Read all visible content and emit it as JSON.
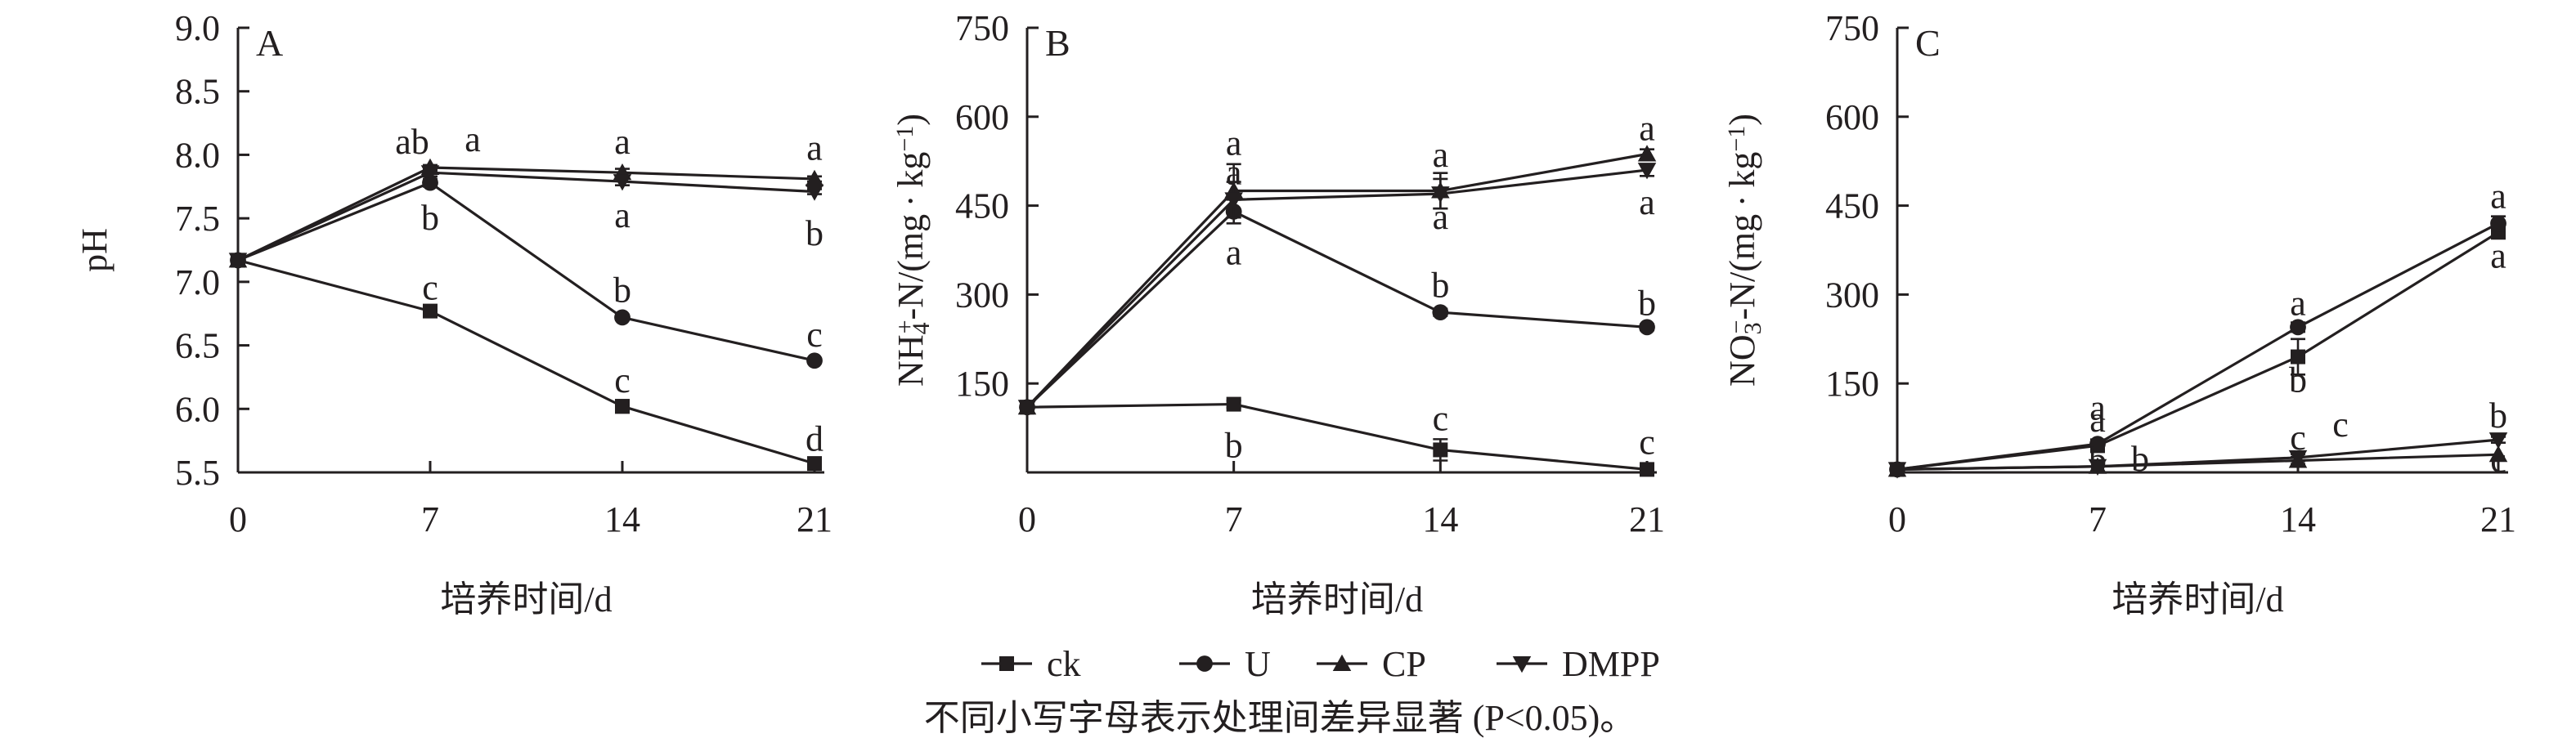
{
  "figure": {
    "xlabel": "培养时间/d",
    "note": "不同小写字母表示处理间差异显著 (P<0.05)。"
  },
  "legend": [
    "ck",
    "U",
    "CP",
    "DMPP"
  ],
  "chart_data": [
    {
      "type": "line",
      "panel_label": "A",
      "ylabel": "pH",
      "xlabel": "培养时间/d",
      "x": [
        0,
        7,
        14,
        21
      ],
      "x_tick_labels": [
        "0",
        "7",
        "14",
        "21"
      ],
      "ylim": [
        5.5,
        9.0
      ],
      "y_ticks": [
        5.5,
        6.0,
        6.5,
        7.0,
        7.5,
        8.0,
        8.5,
        9.0
      ],
      "y_tick_labels": [
        "5.5",
        "6.0",
        "6.5",
        "7.0",
        "7.5",
        "8.0",
        "8.5",
        "9.0"
      ],
      "series": [
        {
          "name": "ck",
          "marker": "square",
          "values": [
            7.17,
            6.77,
            6.02,
            5.57
          ],
          "errors": [
            0.04,
            0.03,
            0.05,
            0.03
          ]
        },
        {
          "name": "U",
          "marker": "circle",
          "values": [
            7.17,
            7.78,
            6.72,
            6.38
          ],
          "errors": [
            0.04,
            0.03,
            0.02,
            0.02
          ]
        },
        {
          "name": "CP",
          "marker": "triangle-up",
          "values": [
            7.17,
            7.9,
            7.86,
            7.81
          ],
          "errors": [
            0.04,
            0.02,
            0.03,
            0.02
          ]
        },
        {
          "name": "DMPP",
          "marker": "triangle-down",
          "values": [
            7.17,
            7.86,
            7.79,
            7.71
          ],
          "errors": [
            0.04,
            0.03,
            0.03,
            0.02
          ]
        }
      ],
      "annotations": [
        {
          "text": "ab",
          "x": 7,
          "y": 8.1
        },
        {
          "text": "a",
          "x": 7,
          "y": 8.12
        },
        {
          "text": "b",
          "x": 7,
          "y": 7.5
        },
        {
          "text": "c",
          "x": 7,
          "y": 6.95
        },
        {
          "text": "a",
          "x": 14,
          "y": 8.1
        },
        {
          "text": "a",
          "x": 14,
          "y": 7.52
        },
        {
          "text": "b",
          "x": 14,
          "y": 6.93
        },
        {
          "text": "c",
          "x": 14,
          "y": 6.22
        },
        {
          "text": "a",
          "x": 21,
          "y": 8.05
        },
        {
          "text": "b",
          "x": 21,
          "y": 7.38
        },
        {
          "text": "c",
          "x": 21,
          "y": 6.58
        },
        {
          "text": "d",
          "x": 21,
          "y": 5.76
        }
      ]
    },
    {
      "type": "line",
      "panel_label": "B",
      "ylabel": "NH4+-N/(mg·kg-1)",
      "xlabel": "培养时间/d",
      "x": [
        0,
        7,
        14,
        21
      ],
      "x_tick_labels": [
        "0",
        "7",
        "14",
        "21"
      ],
      "ylim": [
        0,
        750
      ],
      "y_ticks": [
        150,
        300,
        450,
        600,
        750
      ],
      "y_tick_labels": [
        "150",
        "300",
        "450",
        "600",
        "750"
      ],
      "series": [
        {
          "name": "ck",
          "marker": "square",
          "values": [
            110,
            115,
            38,
            5
          ],
          "errors": [
            5,
            6,
            18,
            4
          ]
        },
        {
          "name": "U",
          "marker": "circle",
          "values": [
            110,
            440,
            270,
            245
          ],
          "errors": [
            5,
            20,
            6,
            5
          ]
        },
        {
          "name": "CP",
          "marker": "triangle-up",
          "values": [
            110,
            475,
            475,
            537
          ],
          "errors": [
            5,
            45,
            30,
            8
          ]
        },
        {
          "name": "DMPP",
          "marker": "triangle-down",
          "values": [
            110,
            460,
            470,
            510
          ],
          "errors": [
            5,
            30,
            25,
            10
          ]
        }
      ],
      "annotations": [
        {
          "text": "a",
          "x": 7,
          "y": 505
        },
        {
          "text": "a",
          "x": 7,
          "y": 555
        },
        {
          "text": "a",
          "x": 7,
          "y": 370
        },
        {
          "text": "b",
          "x": 7,
          "y": 45
        },
        {
          "text": "a",
          "x": 14,
          "y": 535
        },
        {
          "text": "a",
          "x": 14,
          "y": 430
        },
        {
          "text": "b",
          "x": 14,
          "y": 315
        },
        {
          "text": "c",
          "x": 14,
          "y": 90
        },
        {
          "text": "a",
          "x": 21,
          "y": 580
        },
        {
          "text": "a",
          "x": 21,
          "y": 455
        },
        {
          "text": "b",
          "x": 21,
          "y": 285
        },
        {
          "text": "c",
          "x": 21,
          "y": 50
        }
      ]
    },
    {
      "type": "line",
      "panel_label": "C",
      "ylabel": "NO3--N/(mg·kg-1)",
      "xlabel": "培养时间/d",
      "x": [
        0,
        7,
        14,
        21
      ],
      "x_tick_labels": [
        "0",
        "7",
        "14",
        "21"
      ],
      "ylim": [
        0,
        750
      ],
      "y_ticks": [
        150,
        300,
        450,
        600,
        750
      ],
      "y_tick_labels": [
        "150",
        "300",
        "450",
        "600",
        "750"
      ],
      "series": [
        {
          "name": "ck",
          "marker": "square",
          "values": [
            5,
            45,
            195,
            405
          ],
          "errors": [
            3,
            5,
            30,
            10
          ]
        },
        {
          "name": "U",
          "marker": "circle",
          "values": [
            5,
            48,
            245,
            420
          ],
          "errors": [
            3,
            4,
            8,
            12
          ]
        },
        {
          "name": "CP",
          "marker": "triangle-up",
          "values": [
            5,
            10,
            20,
            30
          ],
          "errors": [
            2,
            3,
            6,
            4
          ]
        },
        {
          "name": "DMPP",
          "marker": "triangle-down",
          "values": [
            5,
            10,
            25,
            55
          ],
          "errors": [
            2,
            3,
            6,
            5
          ]
        }
      ],
      "annotations": [
        {
          "text": "a",
          "x": 7,
          "y": 88
        },
        {
          "text": "a",
          "x": 7,
          "y": 108
        },
        {
          "text": "b",
          "x": 7,
          "y": 20
        },
        {
          "text": "b",
          "x": 7,
          "y": 22
        },
        {
          "text": "a",
          "x": 14,
          "y": 285
        },
        {
          "text": "b",
          "x": 14,
          "y": 155
        },
        {
          "text": "c",
          "x": 14,
          "y": 58
        },
        {
          "text": "c",
          "x": 14,
          "y": 80
        },
        {
          "text": "a",
          "x": 21,
          "y": 465
        },
        {
          "text": "a",
          "x": 21,
          "y": 365
        },
        {
          "text": "b",
          "x": 21,
          "y": 95
        },
        {
          "text": "c",
          "x": 21,
          "y": 20
        }
      ]
    }
  ]
}
